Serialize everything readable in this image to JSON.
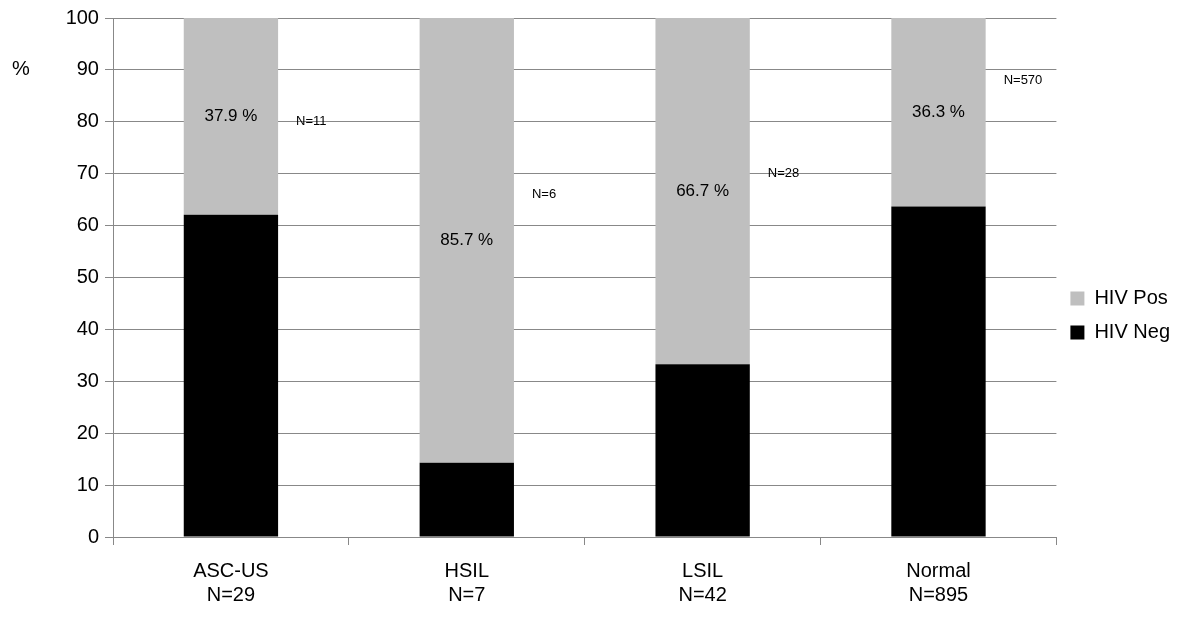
{
  "chart_data": {
    "type": "bar",
    "stacked": true,
    "ylabel": "%",
    "categories": [
      "ASC-US\nN=29",
      "HSIL\nN=7",
      "LSIL\nN=42",
      "Normal\nN=895"
    ],
    "series": [
      {
        "name": "HIV Neg",
        "color": "#000000",
        "values": [
          62.1,
          14.3,
          33.3,
          63.7
        ]
      },
      {
        "name": "HIV Pos",
        "color": "#bfbfbf",
        "values": [
          37.9,
          85.7,
          66.7,
          36.3
        ],
        "value_labels": [
          "37.9 %",
          "85.7 %",
          "66.7 %",
          "36.3 %"
        ]
      }
    ],
    "ylim": [
      0,
      100
    ],
    "yticks": [
      0,
      10,
      20,
      30,
      40,
      50,
      60,
      70,
      80,
      90,
      100
    ],
    "grid": "y",
    "legend": "right",
    "annotations": [
      "N=11",
      "N=6",
      "N=28",
      "N=570"
    ]
  }
}
